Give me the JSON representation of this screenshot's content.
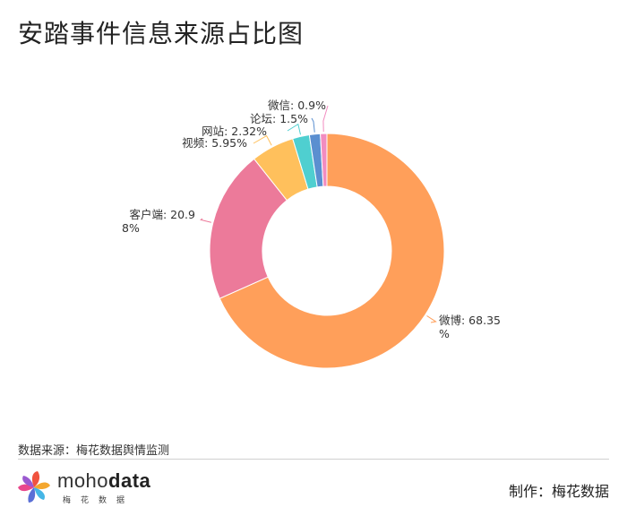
{
  "title": "安踏事件信息来源占比图",
  "source": "数据来源：梅花数据舆情监测",
  "maker": "制作：梅花数据",
  "logo": {
    "name_light": "moho",
    "name_bold": "data",
    "subtitle": "梅花数据"
  },
  "chart_data": {
    "type": "pie",
    "title": "安踏事件信息来源占比图",
    "donut": true,
    "slices": [
      {
        "label": "微博",
        "value": 68.35,
        "text_lines": [
          "微博: 68.35",
          "%"
        ],
        "color": "#FF9F5A"
      },
      {
        "label": "客户端",
        "value": 20.98,
        "text_lines": [
          "客户端: 20.9",
          "8%"
        ],
        "color": "#EC7A9A"
      },
      {
        "label": "视频",
        "value": 5.95,
        "text_lines": [
          "视频: 5.95%"
        ],
        "color": "#FFC05C"
      },
      {
        "label": "网站",
        "value": 2.32,
        "text_lines": [
          "网站: 2.32%"
        ],
        "color": "#4FCFD0"
      },
      {
        "label": "论坛",
        "value": 1.5,
        "text_lines": [
          "论坛: 1.5%"
        ],
        "color": "#5B8FD0"
      },
      {
        "label": "微信",
        "value": 0.9,
        "text_lines": [
          "微信: 0.9%"
        ],
        "color": "#F28CC0"
      }
    ]
  }
}
